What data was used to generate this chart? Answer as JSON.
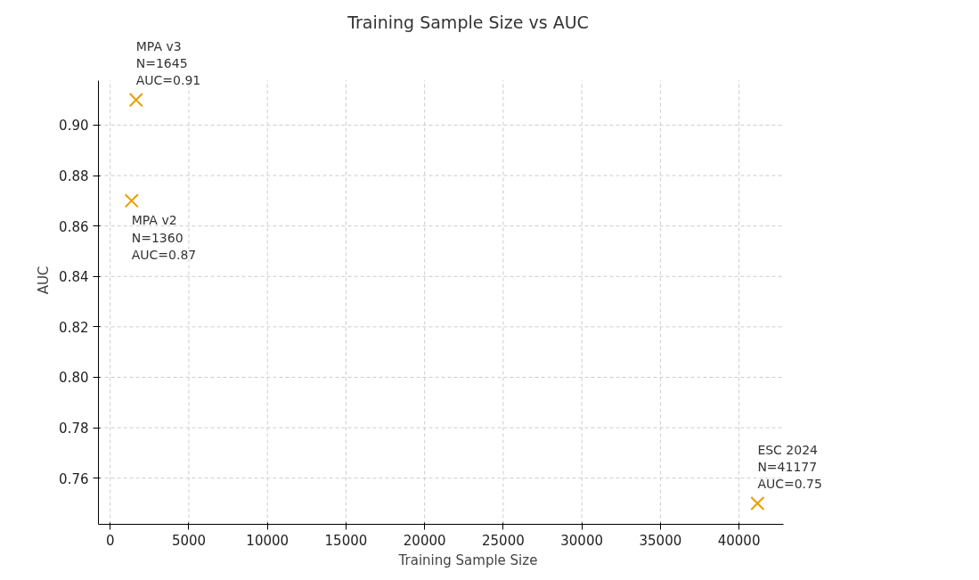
{
  "chart_data": {
    "type": "scatter",
    "title": "Training Sample Size vs AUC",
    "xlabel": "Training Sample Size",
    "ylabel": "AUC",
    "x": [
      1645,
      1360,
      41177
    ],
    "series": [
      {
        "color": "#e69f00",
        "values": [
          0.91,
          0.87,
          0.75
        ]
      }
    ],
    "marker": "cross",
    "xlim": [
      -750,
      42800
    ],
    "ylim": [
      0.7417,
      0.9177
    ],
    "xticks": [
      0,
      5000,
      10000,
      15000,
      20000,
      25000,
      30000,
      35000,
      40000
    ],
    "yticks": [
      {
        "value": 0.76,
        "label": "0.76"
      },
      {
        "value": 0.78,
        "label": "0.78"
      },
      {
        "value": 0.8,
        "label": "0.80"
      },
      {
        "value": 0.82,
        "label": "0.82"
      },
      {
        "value": 0.84,
        "label": "0.84"
      },
      {
        "value": 0.86,
        "label": "0.86"
      },
      {
        "value": 0.88,
        "label": "0.88"
      },
      {
        "value": 0.9,
        "label": "0.90"
      }
    ],
    "grid": true,
    "annotations": [
      {
        "text": "MPA v3\nN=1645\nAUC=0.91",
        "x": 1645,
        "y": 0.91
      },
      {
        "text": "MPA v2\nN=1360\nAUC=0.87",
        "x": 1360,
        "y": 0.87
      },
      {
        "text": "ESC 2024\nN=41177\nAUC=0.75",
        "x": 41177,
        "y": 0.75
      }
    ]
  }
}
